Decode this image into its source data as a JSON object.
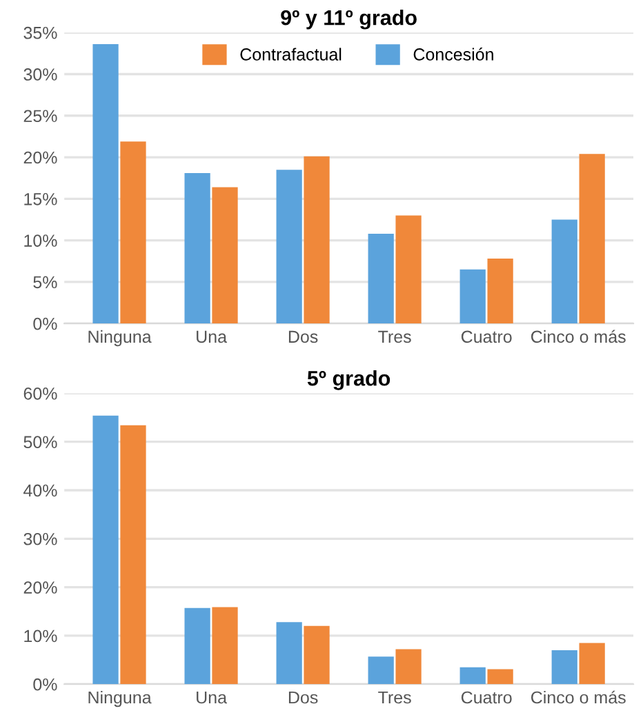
{
  "chart_data": [
    {
      "type": "bar",
      "title": "9º y 11º grado",
      "categories": [
        "Ninguna",
        "Una",
        "Dos",
        "Tres",
        "Cuatro",
        "Cinco o más"
      ],
      "series": [
        {
          "name": "Concesión",
          "color": "#5ba3dc",
          "values": [
            33.6,
            18.1,
            18.5,
            10.8,
            6.5,
            12.5
          ]
        },
        {
          "name": "Contrafactual",
          "color": "#f0883a",
          "values": [
            21.9,
            16.4,
            20.1,
            13.0,
            7.8,
            20.4
          ]
        }
      ],
      "ylim": [
        0,
        35
      ],
      "yticks": [
        {
          "value": 0,
          "label": "0%"
        },
        {
          "value": 5,
          "label": "5%"
        },
        {
          "value": 10,
          "label": "10%"
        },
        {
          "value": 15,
          "label": "15%"
        },
        {
          "value": 20,
          "label": "20%"
        },
        {
          "value": 25,
          "label": "25%"
        },
        {
          "value": 30,
          "label": "30%"
        },
        {
          "value": 35,
          "label": "35%"
        }
      ],
      "grid": "y",
      "legend": "top"
    },
    {
      "type": "bar",
      "title": "5º grado",
      "categories": [
        "Ninguna",
        "Una",
        "Dos",
        "Tres",
        "Cuatro",
        "Cinco o más"
      ],
      "series": [
        {
          "color": "#5ba3dc",
          "values": [
            55.4,
            15.7,
            12.8,
            5.7,
            3.5,
            7.0
          ]
        },
        {
          "color": "#f0883a",
          "values": [
            53.4,
            15.9,
            12.0,
            7.2,
            3.1,
            8.5
          ]
        }
      ],
      "ylim": [
        0,
        60
      ],
      "yticks": [
        {
          "value": 0,
          "label": "0%"
        },
        {
          "value": 10,
          "label": "10%"
        },
        {
          "value": 20,
          "label": "20%"
        },
        {
          "value": 30,
          "label": "30%"
        },
        {
          "value": 40,
          "label": "40%"
        },
        {
          "value": 50,
          "label": "50%"
        },
        {
          "value": 60,
          "label": "60%"
        }
      ],
      "grid": "y"
    }
  ]
}
